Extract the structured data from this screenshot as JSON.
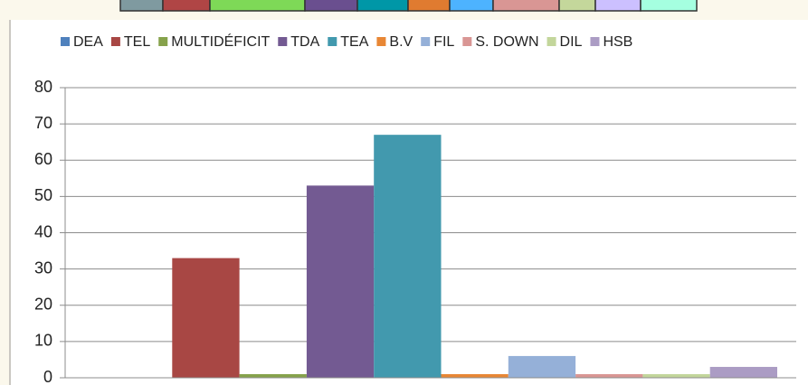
{
  "chart_data": {
    "type": "bar",
    "categories": [
      null
    ],
    "series": [
      {
        "name": "DEA",
        "color": "#4f81bd",
        "values": [
          0
        ]
      },
      {
        "name": "TEL",
        "color": "#a84744",
        "values": [
          33
        ]
      },
      {
        "name": "MULTIDÉFICIT",
        "color": "#86a24b",
        "values": [
          1
        ]
      },
      {
        "name": "TDA",
        "color": "#735a92",
        "values": [
          53
        ]
      },
      {
        "name": "TEA",
        "color": "#4299ae",
        "values": [
          67
        ]
      },
      {
        "name": "B.V",
        "color": "#e88735",
        "values": [
          1
        ]
      },
      {
        "name": "FIL",
        "color": "#95b0d8",
        "values": [
          6
        ]
      },
      {
        "name": "S. DOWN",
        "color": "#d99694",
        "values": [
          1
        ]
      },
      {
        "name": "DIL",
        "color": "#c3d69b",
        "values": [
          1
        ]
      },
      {
        "name": "HSB",
        "color": "#ab9cc4",
        "values": [
          3
        ]
      }
    ],
    "ylim": [
      0,
      80
    ],
    "yticks": [
      0,
      10,
      20,
      30,
      40,
      50,
      60,
      70,
      80
    ],
    "grid": true,
    "legend": "top"
  }
}
